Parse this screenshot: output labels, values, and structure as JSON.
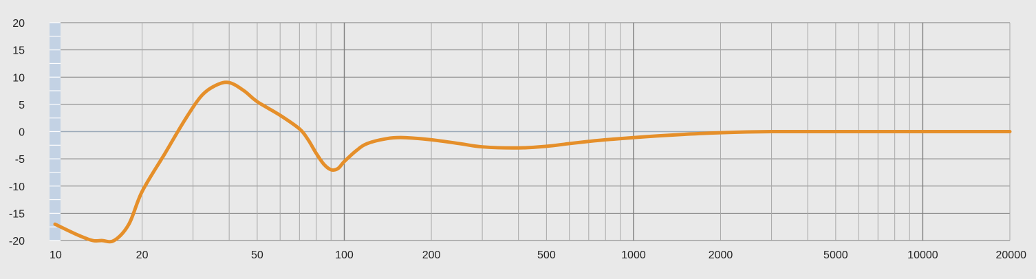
{
  "chart_data": {
    "type": "line",
    "x_scale": "log",
    "xlim": [
      10,
      20000
    ],
    "ylim": [
      -20,
      20
    ],
    "y_ticks": [
      "20",
      "15",
      "10",
      "5",
      "0",
      "-5",
      "-10",
      "-15",
      "-20"
    ],
    "x_tick_labels": [
      "10",
      "20",
      "50",
      "100",
      "200",
      "500",
      "1000",
      "2000",
      "5000",
      "10000",
      "20000"
    ],
    "grid": true,
    "legend": "none",
    "colors": {
      "background": "#e9e9e9",
      "grid": "#7d7d7d",
      "grid_light": "#a8a8a8",
      "zero_line": "#9aa9b8",
      "ruler": "#c3d2e4",
      "curve": "#e58f2a"
    },
    "series": [
      {
        "x": [
          10,
          12,
          13.5,
          14.5,
          16,
          18,
          20,
          24,
          28,
          32,
          36,
          40,
          45,
          50,
          60,
          70,
          75,
          80,
          85,
          90,
          95,
          100,
          110,
          120,
          140,
          160,
          200,
          250,
          300,
          400,
          500,
          600,
          700,
          800,
          1000,
          1200,
          1500,
          2000,
          3000,
          5000,
          10000,
          20000
        ],
        "y": [
          -17,
          -19,
          -20,
          -20,
          -20,
          -17,
          -11,
          -4,
          2,
          6.5,
          8.5,
          9,
          7.5,
          5.5,
          3,
          0.5,
          -1.5,
          -4,
          -6,
          -7,
          -6.8,
          -5.5,
          -3.5,
          -2.2,
          -1.3,
          -1.1,
          -1.5,
          -2.2,
          -2.8,
          -3,
          -2.7,
          -2.2,
          -1.8,
          -1.5,
          -1.1,
          -0.8,
          -0.5,
          -0.2,
          0,
          0,
          0,
          0
        ]
      }
    ]
  }
}
